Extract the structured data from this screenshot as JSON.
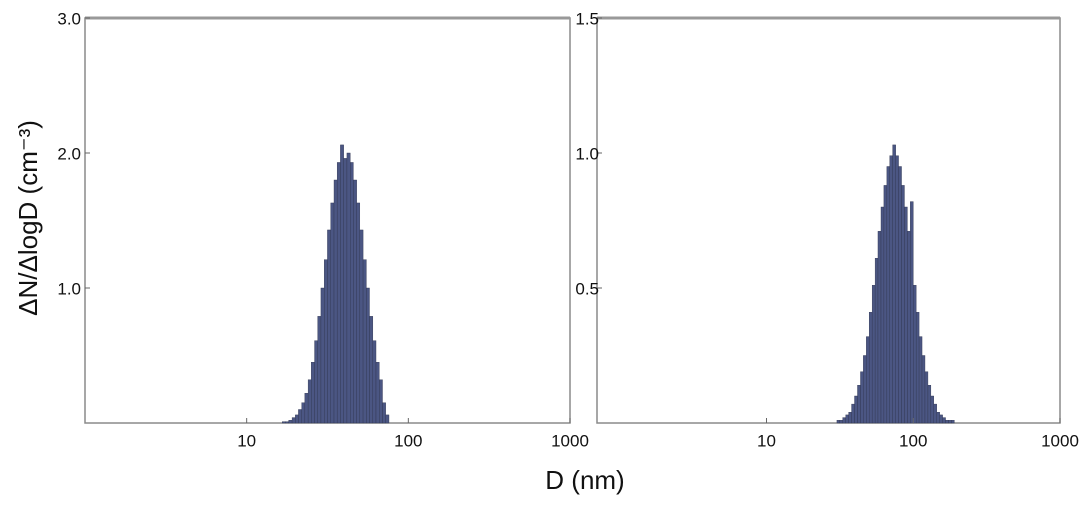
{
  "chart_data": [
    {
      "type": "histogram",
      "ylabel": "ΔN/ΔlogD (cm⁻³)",
      "xlabel": "D (nm)",
      "xscale": "log",
      "xlim": [
        1,
        1000
      ],
      "xticks": [
        10,
        100,
        1000
      ],
      "ylim": [
        0,
        3.0
      ],
      "yticks": [
        {
          "value": 1.0,
          "label": "1.0"
        },
        {
          "value": 2.0,
          "label": "2.0"
        },
        {
          "value": 3.0,
          "label": "3.0"
        }
      ],
      "color": "#4b5683",
      "bins": [
        16.6,
        17.4,
        18.2,
        19.1,
        20.0,
        20.9,
        21.9,
        22.9,
        24.0,
        25.1,
        26.3,
        27.5,
        28.8,
        30.2,
        31.6,
        33.1,
        34.7,
        36.3,
        38.0,
        39.8,
        41.7,
        43.7,
        45.7,
        47.9,
        50.1,
        52.5,
        55.0,
        57.5,
        60.3,
        63.1,
        66.1,
        69.2,
        72.4,
        75.9
      ],
      "values": [
        0.01,
        0.01,
        0.02,
        0.04,
        0.06,
        0.1,
        0.15,
        0.22,
        0.32,
        0.45,
        0.61,
        0.79,
        1.0,
        1.21,
        1.43,
        1.63,
        1.8,
        1.93,
        2.06,
        1.96,
        2.0,
        1.93,
        1.8,
        1.63,
        1.43,
        1.21,
        1.0,
        0.79,
        0.61,
        0.45,
        0.32,
        0.15,
        0.06
      ]
    },
    {
      "type": "histogram",
      "xscale": "log",
      "xlim": [
        0.7,
        1000
      ],
      "xticks": [
        10,
        100,
        1000
      ],
      "ylim": [
        0,
        1.5
      ],
      "yticks": [
        0.5,
        {
          "value": 1.0,
          "label": "1.0"
        },
        1.5
      ],
      "color": "#4b5683",
      "bins": [
        30.2,
        31.6,
        33.1,
        34.7,
        36.3,
        38.0,
        39.8,
        41.7,
        43.7,
        45.7,
        47.9,
        50.1,
        52.5,
        55.0,
        57.5,
        60.3,
        63.1,
        66.1,
        69.2,
        72.4,
        75.9,
        79.4,
        83.2,
        87.1,
        91.2,
        95.5,
        100,
        104.7,
        109.6,
        114.8,
        120.2,
        125.9,
        131.8,
        138.0,
        144.5,
        151.4,
        158.5,
        166.0,
        173.8,
        182.0,
        190.5
      ],
      "values": [
        0.01,
        0.01,
        0.02,
        0.03,
        0.04,
        0.07,
        0.1,
        0.14,
        0.19,
        0.25,
        0.32,
        0.41,
        0.51,
        0.61,
        0.71,
        0.8,
        0.88,
        0.95,
        0.99,
        1.03,
        0.99,
        0.95,
        0.88,
        0.8,
        0.71,
        0.82,
        0.51,
        0.41,
        0.32,
        0.25,
        0.19,
        0.14,
        0.1,
        0.07,
        0.04,
        0.03,
        0.02,
        0.01,
        0.01,
        0.01
      ]
    }
  ]
}
